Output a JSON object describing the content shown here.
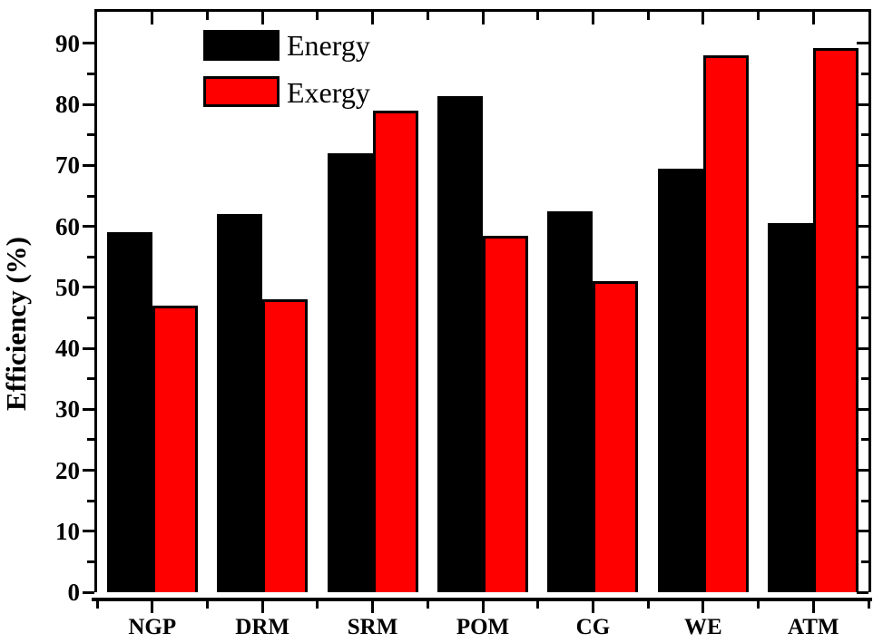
{
  "axes": {
    "y_title": "Efficiency (%)"
  },
  "legend": {
    "position": "top-left",
    "items": [
      {
        "label": "Energy",
        "color": "#000000"
      },
      {
        "label": "Exergy",
        "color": "#ff0000"
      }
    ]
  },
  "chart_data": {
    "type": "bar",
    "categories": [
      "NGP",
      "DRM",
      "SRM",
      "POM",
      "CG",
      "WE",
      "ATM"
    ],
    "series": [
      {
        "name": "Energy",
        "color": "#000000",
        "values": [
          59,
          62,
          72,
          81.4,
          62.5,
          69.5,
          60.5
        ]
      },
      {
        "name": "Exergy",
        "color": "#ff0000",
        "values": [
          47,
          48,
          79,
          58.4,
          51,
          88,
          89.2
        ]
      }
    ],
    "title": "",
    "xlabel": "",
    "ylabel": "Efficiency (%)",
    "ylim": [
      0,
      95.2
    ],
    "y_ticks": [
      0,
      10,
      20,
      30,
      40,
      50,
      60,
      70,
      80,
      90
    ],
    "y_minor_step": 5,
    "grid": false,
    "legend_position": "top-left",
    "bar_outline_color": "#000000"
  }
}
